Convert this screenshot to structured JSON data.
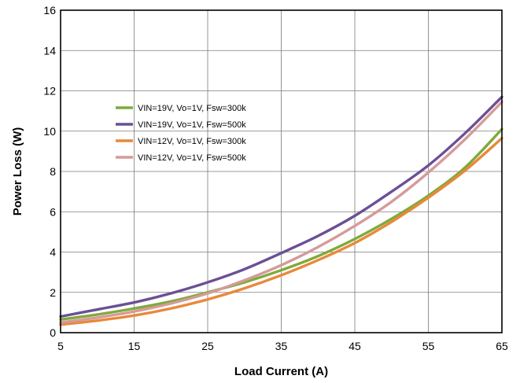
{
  "chart_data": {
    "type": "line",
    "title": "",
    "xlabel": "Load Current (A)",
    "ylabel": "Power Loss (W)",
    "xlim": [
      5,
      65
    ],
    "ylim": [
      0,
      16
    ],
    "xticks": [
      5,
      15,
      25,
      35,
      45,
      55,
      65
    ],
    "yticks": [
      0,
      2,
      4,
      6,
      8,
      10,
      12,
      14,
      16
    ],
    "grid": true,
    "legend_position": "upper-left (inside plot)",
    "series": [
      {
        "name": "VIN=19V, Vo=1V, Fsw=300k",
        "color": "#7faa3b",
        "x": [
          5,
          10,
          15,
          20,
          25,
          30,
          35,
          40,
          45,
          50,
          55,
          60,
          65
        ],
        "y": [
          0.65,
          0.9,
          1.2,
          1.55,
          2.0,
          2.5,
          3.1,
          3.8,
          4.65,
          5.65,
          6.8,
          8.2,
          10.1
        ]
      },
      {
        "name": "VIN=19V, Vo=1V, Fsw=500k",
        "color": "#6c4f96",
        "x": [
          5,
          10,
          15,
          20,
          25,
          30,
          35,
          40,
          45,
          50,
          55,
          60,
          65
        ],
        "y": [
          0.8,
          1.15,
          1.5,
          1.95,
          2.5,
          3.15,
          3.95,
          4.8,
          5.8,
          7.0,
          8.3,
          9.9,
          11.7
        ]
      },
      {
        "name": "VIN=12V, Vo=1V, Fsw=300k",
        "color": "#e8893a",
        "x": [
          5,
          10,
          15,
          20,
          25,
          30,
          35,
          40,
          45,
          50,
          55,
          60,
          65
        ],
        "y": [
          0.4,
          0.6,
          0.85,
          1.2,
          1.65,
          2.2,
          2.85,
          3.6,
          4.45,
          5.5,
          6.7,
          8.05,
          9.65
        ]
      },
      {
        "name": "VIN=12V, Vo=1V, Fsw=500k",
        "color": "#d69a9a",
        "x": [
          5,
          10,
          15,
          20,
          25,
          30,
          35,
          40,
          45,
          50,
          55,
          60,
          65
        ],
        "y": [
          0.5,
          0.75,
          1.05,
          1.45,
          1.95,
          2.6,
          3.35,
          4.25,
          5.3,
          6.5,
          7.95,
          9.6,
          11.45
        ]
      }
    ]
  }
}
